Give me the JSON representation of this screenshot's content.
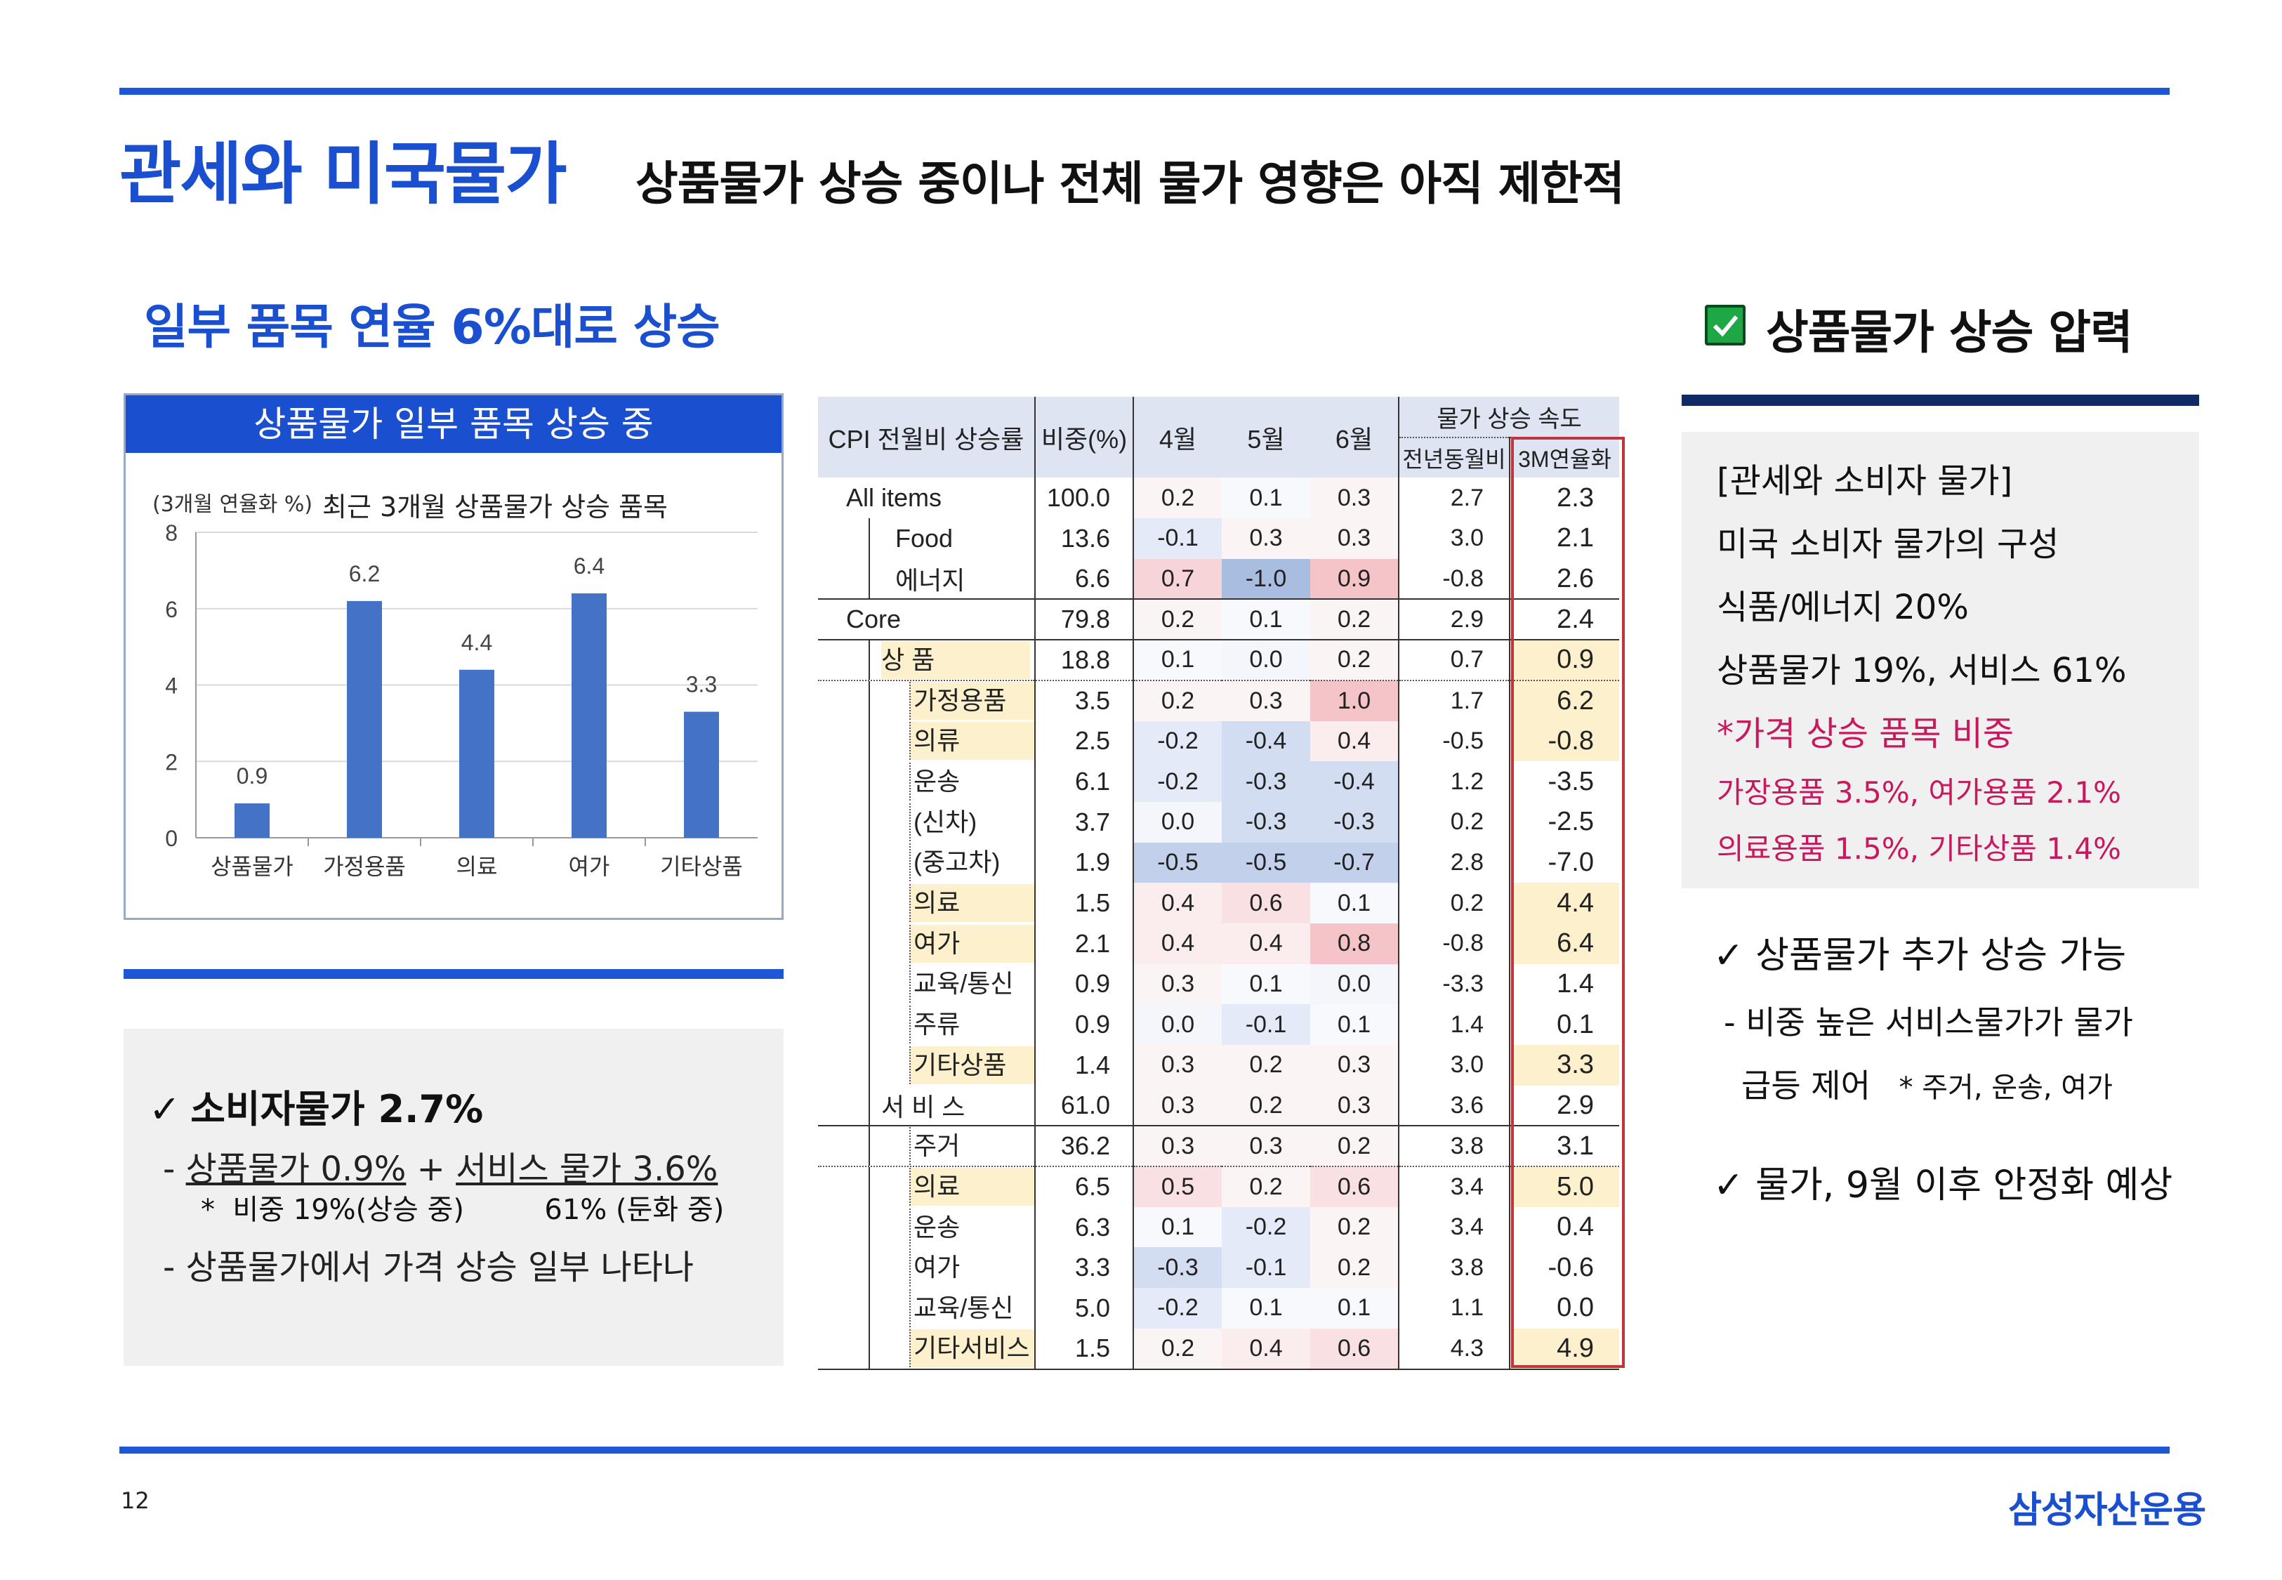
{
  "header": {
    "title": "관세와 미국물가",
    "subtitle": "상품물가 상승 중이나 전체 물가 영향은 아직 제한적"
  },
  "left": {
    "section_title": "일부 품목 연율 6%대로 상승",
    "chart_header": "상품물가 일부 품목 상승 중",
    "chart_unit": "(3개월 연율화 %)",
    "chart_title": "최근 3개월 상품물가 상승 품목"
  },
  "chart_data": {
    "type": "bar",
    "title": "최근 3개월 상품물가 상승 품목",
    "ylabel": "(3개월 연율화 %)",
    "categories": [
      "상품물가",
      "가정용품",
      "의료",
      "여가",
      "기타상품"
    ],
    "values": [
      0.9,
      6.2,
      4.4,
      6.4,
      3.3
    ],
    "data_labels": [
      "0.9",
      "6.2",
      "4.4",
      "6.4",
      "3.3"
    ],
    "ylim": [
      0,
      8
    ],
    "yticks": [
      "0",
      "2",
      "4",
      "6",
      "8"
    ],
    "bar_color": "#4472c4",
    "grid": true
  },
  "cpi_box": {
    "check": "✓",
    "title": "소비자물가 2.7%",
    "line1_prefix": "- ",
    "line1_a": "상품물가 0.9%",
    "line1_plus": " + ",
    "line1_b": "서비스 물가 3.6%",
    "line2": "*  비중 19%(상승 중)         61% (둔화 중)",
    "line3": "- 상품물가에서 가격 상승 일부 나타나"
  },
  "table": {
    "header": {
      "name": "CPI 전월비 상승률",
      "weight": "비중(%)",
      "m4": "4월",
      "m5": "5월",
      "m6": "6월",
      "speed": "물가 상승 속도",
      "yoy": "전년동월비",
      "ann3m": "3M연율화"
    },
    "rows": [
      {
        "name": "All items",
        "w": "100.0",
        "m4": "0.2",
        "m5": "0.1",
        "m6": "0.3",
        "yoy": "2.7",
        "a3": "2.3"
      },
      {
        "name": "Food",
        "w": "13.6",
        "m4": "-0.1",
        "m5": "0.3",
        "m6": "0.3",
        "yoy": "3.0",
        "a3": "2.1"
      },
      {
        "name": "에너지",
        "w": "6.6",
        "m4": "0.7",
        "m5": "-1.0",
        "m6": "0.9",
        "yoy": "-0.8",
        "a3": "2.6"
      },
      {
        "name": "Core",
        "w": "79.8",
        "m4": "0.2",
        "m5": "0.1",
        "m6": "0.2",
        "yoy": "2.9",
        "a3": "2.4"
      },
      {
        "name": "상     품",
        "w": "18.8",
        "m4": "0.1",
        "m5": "0.0",
        "m6": "0.2",
        "yoy": "0.7",
        "a3": "0.9"
      },
      {
        "name": "가정용품",
        "w": "3.5",
        "m4": "0.2",
        "m5": "0.3",
        "m6": "1.0",
        "yoy": "1.7",
        "a3": "6.2"
      },
      {
        "name": "의류",
        "w": "2.5",
        "m4": "-0.2",
        "m5": "-0.4",
        "m6": "0.4",
        "yoy": "-0.5",
        "a3": "-0.8"
      },
      {
        "name": "운송",
        "w": "6.1",
        "m4": "-0.2",
        "m5": "-0.3",
        "m6": "-0.4",
        "yoy": "1.2",
        "a3": "-3.5"
      },
      {
        "name": "(신차)",
        "w": "3.7",
        "m4": "0.0",
        "m5": "-0.3",
        "m6": "-0.3",
        "yoy": "0.2",
        "a3": "-2.5"
      },
      {
        "name": "(중고차)",
        "w": "1.9",
        "m4": "-0.5",
        "m5": "-0.5",
        "m6": "-0.7",
        "yoy": "2.8",
        "a3": "-7.0"
      },
      {
        "name": "의료",
        "w": "1.5",
        "m4": "0.4",
        "m5": "0.6",
        "m6": "0.1",
        "yoy": "0.2",
        "a3": "4.4"
      },
      {
        "name": "여가",
        "w": "2.1",
        "m4": "0.4",
        "m5": "0.4",
        "m6": "0.8",
        "yoy": "-0.8",
        "a3": "6.4"
      },
      {
        "name": "교육/통신",
        "w": "0.9",
        "m4": "0.3",
        "m5": "0.1",
        "m6": "0.0",
        "yoy": "-3.3",
        "a3": "1.4"
      },
      {
        "name": "주류",
        "w": "0.9",
        "m4": "0.0",
        "m5": "-0.1",
        "m6": "0.1",
        "yoy": "1.4",
        "a3": "0.1"
      },
      {
        "name": "기타상품",
        "w": "1.4",
        "m4": "0.3",
        "m5": "0.2",
        "m6": "0.3",
        "yoy": "3.0",
        "a3": "3.3"
      },
      {
        "name": "서 비 스",
        "w": "61.0",
        "m4": "0.3",
        "m5": "0.2",
        "m6": "0.3",
        "yoy": "3.6",
        "a3": "2.9"
      },
      {
        "name": "주거",
        "w": "36.2",
        "m4": "0.3",
        "m5": "0.3",
        "m6": "0.2",
        "yoy": "3.8",
        "a3": "3.1"
      },
      {
        "name": "의료",
        "w": "6.5",
        "m4": "0.5",
        "m5": "0.2",
        "m6": "0.6",
        "yoy": "3.4",
        "a3": "5.0"
      },
      {
        "name": "운송",
        "w": "6.3",
        "m4": "0.1",
        "m5": "-0.2",
        "m6": "0.2",
        "yoy": "3.4",
        "a3": "0.4"
      },
      {
        "name": "여가",
        "w": "3.3",
        "m4": "-0.3",
        "m5": "-0.1",
        "m6": "0.2",
        "yoy": "3.8",
        "a3": "-0.6"
      },
      {
        "name": "교육/통신",
        "w": "5.0",
        "m4": "-0.2",
        "m5": "0.1",
        "m6": "0.1",
        "yoy": "1.1",
        "a3": "0.0"
      },
      {
        "name": "기타서비스",
        "w": "1.5",
        "m4": "0.2",
        "m5": "0.4",
        "m6": "0.6",
        "yoy": "4.3",
        "a3": "4.9"
      }
    ]
  },
  "right": {
    "title": "상품물가 상승 압력",
    "box_lines": [
      "[관세와 소비자 물가]",
      "미국 소비자 물가의 구성",
      "식품/에너지 20%",
      "상품물가 19%, 서비스 61%",
      "*가격 상승 품목 비중",
      "가장용품 3.5%, 여가용품 2.1%",
      "의료용품 1.5%, 기타상품 1.4%"
    ],
    "item1": "상품물가 추가 상승 가능",
    "item1_sub1": "- 비중 높은 서비스물가가 물가",
    "item1_sub2": "급등 제어",
    "item1_sub2_note": "* 주거, 운송, 여가",
    "item2": "물가, 9월 이후 안정화 예상",
    "check": "✓"
  },
  "footer": {
    "page": "12",
    "logo": "삼성자산운용"
  },
  "colors": {
    "accent": "#1a4fd0",
    "highlight_yellow": "#fdf0cd",
    "red_box": "#c0343a",
    "pink_text": "#c8185e",
    "check_green": "#1ea845"
  }
}
